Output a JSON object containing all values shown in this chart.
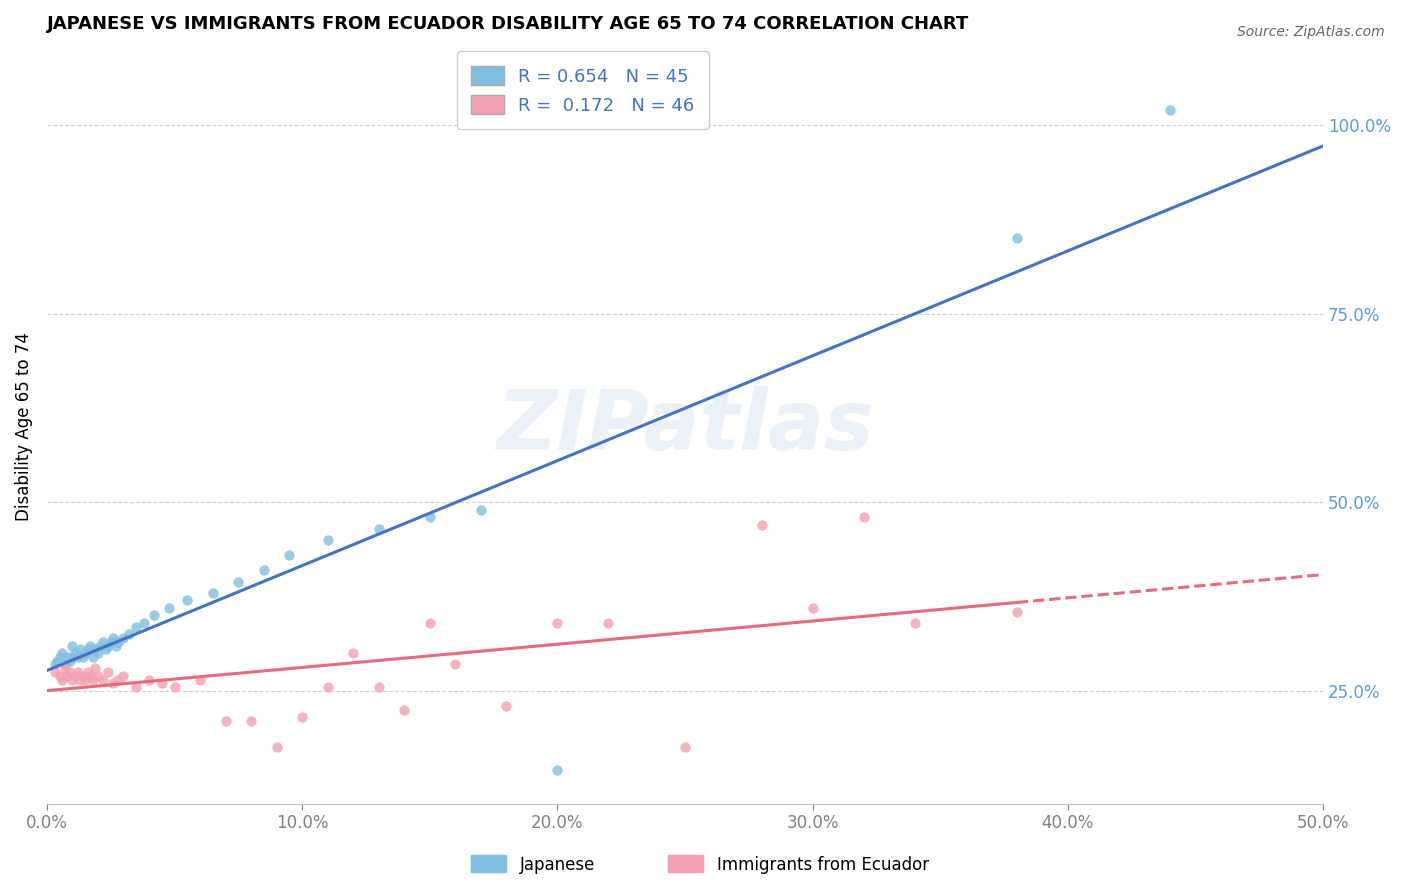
{
  "title": "JAPANESE VS IMMIGRANTS FROM ECUADOR DISABILITY AGE 65 TO 74 CORRELATION CHART",
  "source": "Source: ZipAtlas.com",
  "ylabel": "Disability Age 65 to 74",
  "xlim": [
    0.0,
    0.5
  ],
  "ylim": [
    0.1,
    1.1
  ],
  "xtick_labels": [
    "0.0%",
    "10.0%",
    "20.0%",
    "30.0%",
    "40.0%",
    "50.0%"
  ],
  "xtick_vals": [
    0.0,
    0.1,
    0.2,
    0.3,
    0.4,
    0.5
  ],
  "ytick_labels": [
    "25.0%",
    "50.0%",
    "75.0%",
    "100.0%"
  ],
  "ytick_vals": [
    0.25,
    0.5,
    0.75,
    1.0
  ],
  "legend_r_japanese": "R = 0.654",
  "legend_n_japanese": "N = 45",
  "legend_r_ecuador": "R =  0.172",
  "legend_n_ecuador": "N = 46",
  "color_japanese": "#7fbfdf",
  "color_ecuador": "#f4a0b0",
  "color_line_japanese": "#4472c4",
  "color_line_ecuador": "#e8697a",
  "watermark_text": "ZIPatlas",
  "japanese_x": [
    0.003,
    0.004,
    0.005,
    0.006,
    0.007,
    0.008,
    0.009,
    0.01,
    0.01,
    0.011,
    0.012,
    0.013,
    0.014,
    0.015,
    0.016,
    0.017,
    0.018,
    0.019,
    0.02,
    0.021,
    0.022,
    0.023,
    0.024,
    0.025,
    0.026,
    0.027,
    0.028,
    0.03,
    0.032,
    0.035,
    0.038,
    0.042,
    0.048,
    0.055,
    0.065,
    0.075,
    0.085,
    0.095,
    0.11,
    0.13,
    0.15,
    0.17,
    0.2,
    0.38,
    0.44
  ],
  "japanese_y": [
    0.285,
    0.29,
    0.295,
    0.3,
    0.285,
    0.295,
    0.29,
    0.295,
    0.31,
    0.3,
    0.295,
    0.305,
    0.295,
    0.3,
    0.305,
    0.31,
    0.295,
    0.305,
    0.3,
    0.31,
    0.315,
    0.305,
    0.31,
    0.315,
    0.32,
    0.31,
    0.315,
    0.32,
    0.325,
    0.335,
    0.34,
    0.35,
    0.36,
    0.37,
    0.38,
    0.395,
    0.41,
    0.43,
    0.45,
    0.465,
    0.48,
    0.49,
    0.145,
    0.85,
    1.02
  ],
  "ecuador_x": [
    0.003,
    0.005,
    0.006,
    0.007,
    0.008,
    0.009,
    0.01,
    0.011,
    0.012,
    0.013,
    0.014,
    0.015,
    0.016,
    0.017,
    0.018,
    0.019,
    0.02,
    0.022,
    0.024,
    0.026,
    0.028,
    0.03,
    0.035,
    0.04,
    0.045,
    0.05,
    0.06,
    0.07,
    0.08,
    0.09,
    0.1,
    0.11,
    0.12,
    0.13,
    0.14,
    0.15,
    0.16,
    0.18,
    0.2,
    0.22,
    0.25,
    0.28,
    0.3,
    0.32,
    0.34,
    0.38
  ],
  "ecuador_y": [
    0.275,
    0.27,
    0.265,
    0.28,
    0.27,
    0.275,
    0.265,
    0.27,
    0.275,
    0.265,
    0.27,
    0.265,
    0.275,
    0.27,
    0.265,
    0.28,
    0.27,
    0.265,
    0.275,
    0.26,
    0.265,
    0.27,
    0.255,
    0.265,
    0.26,
    0.255,
    0.265,
    0.21,
    0.21,
    0.175,
    0.215,
    0.255,
    0.3,
    0.255,
    0.225,
    0.34,
    0.285,
    0.23,
    0.34,
    0.34,
    0.175,
    0.47,
    0.36,
    0.48,
    0.34,
    0.355
  ]
}
